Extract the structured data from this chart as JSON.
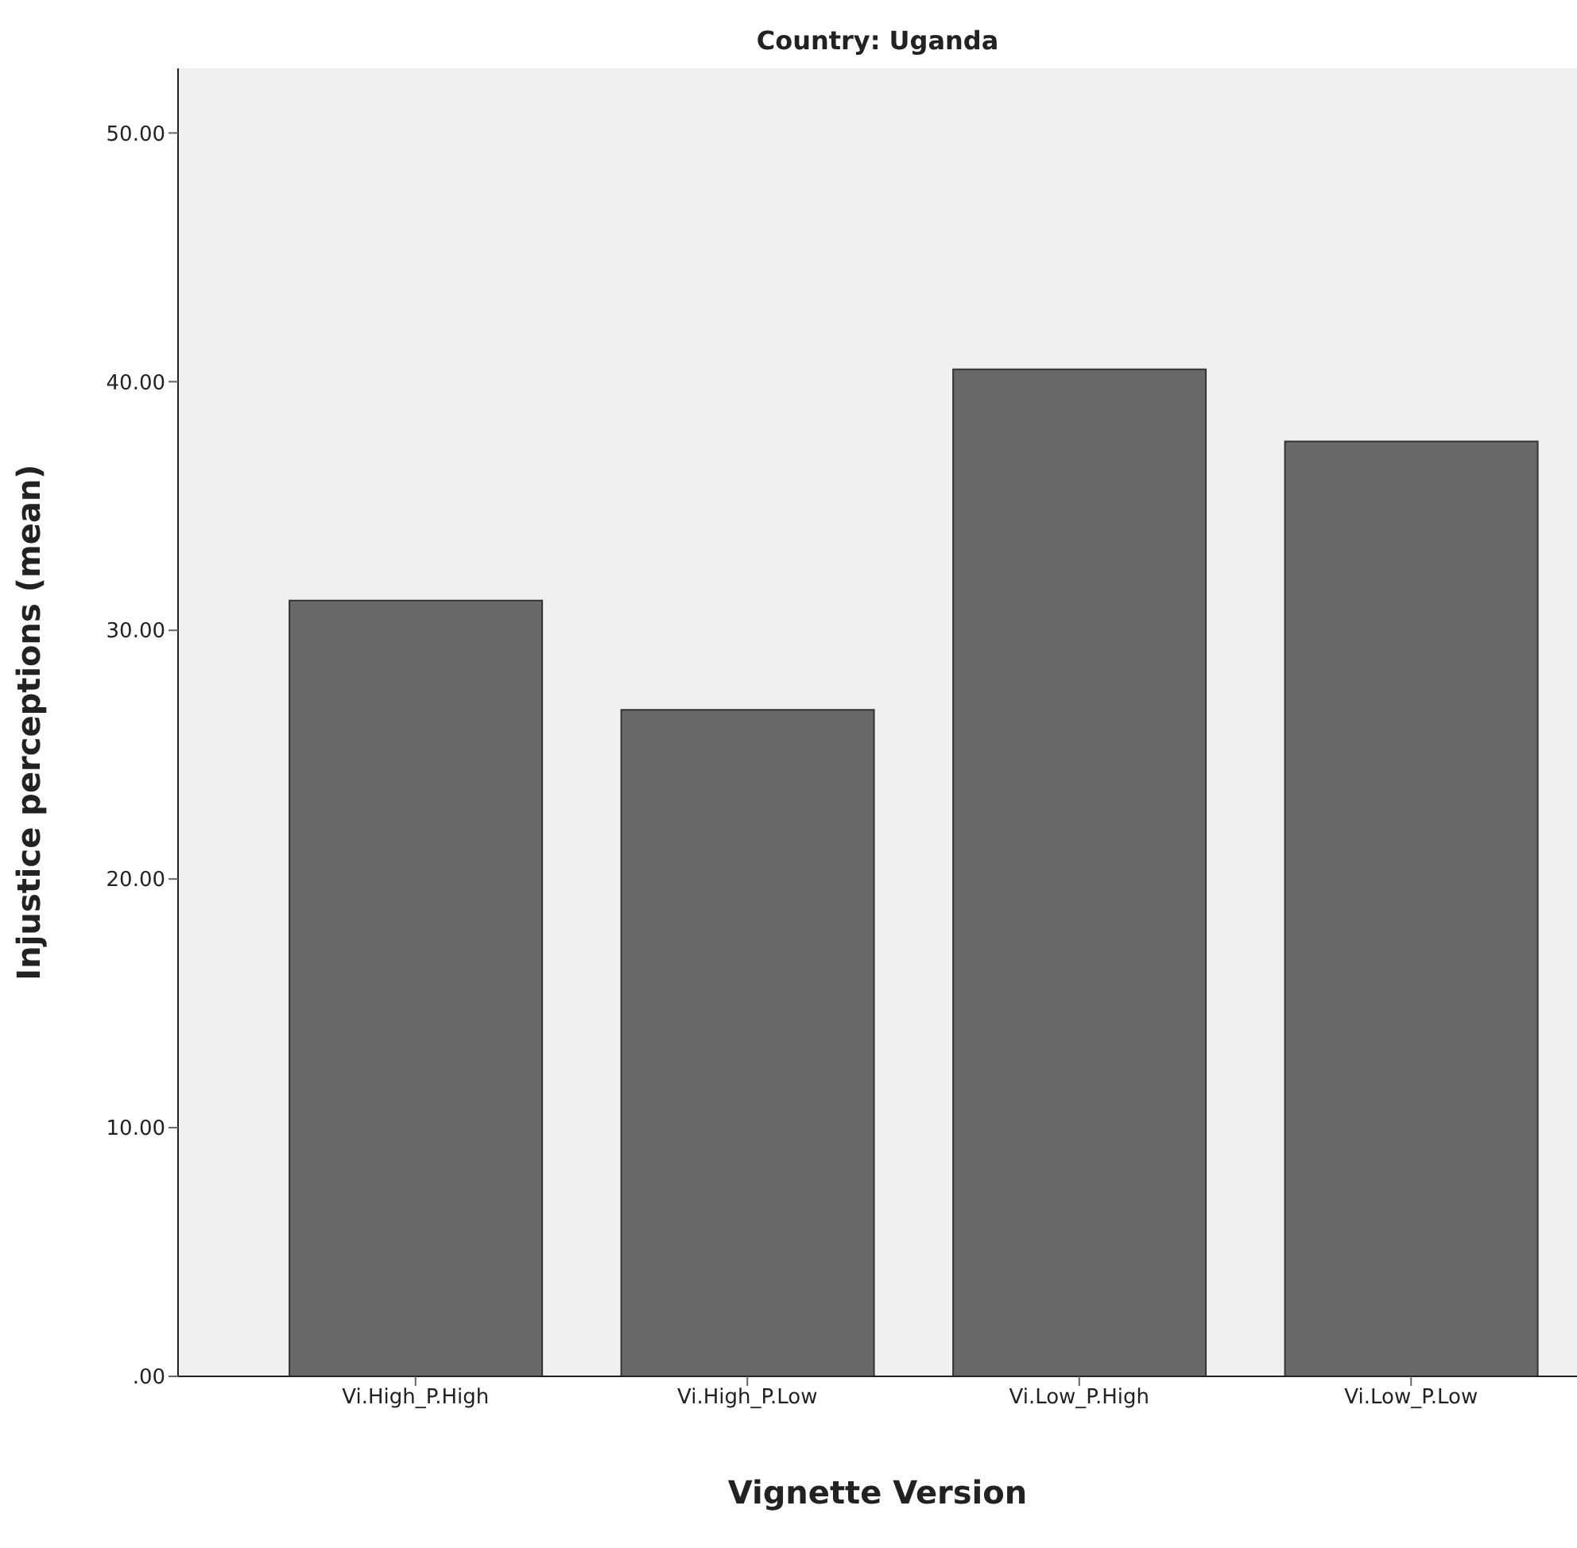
{
  "chart_data": {
    "type": "bar",
    "title": "Country: Uganda",
    "xlabel": "Vignette Version",
    "ylabel": "Injustice perceptions (mean)",
    "categories": [
      "Vi.High_P.High",
      "Vi.High_P.Low",
      "Vi.Low_P.High",
      "Vi.Low_P.Low"
    ],
    "values": [
      31.2,
      26.8,
      40.5,
      37.6
    ],
    "color": "#68696b",
    "ylim": [
      0,
      52.6
    ],
    "yticks": [
      {
        "value": 0,
        "label": ".00"
      },
      {
        "value": 10,
        "label": "10.00"
      },
      {
        "value": 20,
        "label": "20.00"
      },
      {
        "value": 30,
        "label": "30.00"
      },
      {
        "value": 40,
        "label": "40.00"
      },
      {
        "value": 50,
        "label": "50.00"
      }
    ],
    "legend": false
  }
}
